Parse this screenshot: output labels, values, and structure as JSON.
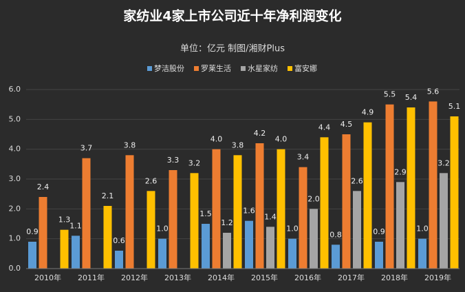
{
  "chart_data": {
    "type": "bar",
    "title": "家纺业4家上市公司近十年净利润变化",
    "subtitle": "单位：亿元 制图/湘财Plus",
    "categories": [
      "2010年",
      "2011年",
      "2012年",
      "2013年",
      "2014年",
      "2015年",
      "2016年",
      "2017年",
      "2018年",
      "2019年"
    ],
    "series": [
      {
        "name": "梦洁股份",
        "color": "#5b9bd5",
        "values": [
          0.9,
          1.1,
          0.6,
          1.0,
          1.5,
          1.6,
          1.0,
          0.8,
          0.9,
          1.0
        ],
        "value_labels": [
          "0.9",
          "1.1",
          "0.6",
          "1.0",
          "1.5",
          "1.6",
          "1.0",
          "0.8",
          "0.9",
          "1.0"
        ]
      },
      {
        "name": "罗莱生活",
        "color": "#ed7d31",
        "values": [
          2.4,
          3.7,
          3.8,
          3.3,
          4.0,
          4.2,
          3.4,
          4.5,
          5.5,
          5.6
        ],
        "value_labels": [
          "2.4",
          "3.7",
          "3.8",
          "3.3",
          "4.0",
          "4.2",
          "3.4",
          "4.5",
          "5.5",
          "5.6"
        ]
      },
      {
        "name": "水星家纺",
        "color": "#a5a5a5",
        "values": [
          null,
          null,
          null,
          null,
          1.2,
          1.4,
          2.0,
          2.6,
          2.9,
          3.2
        ],
        "value_labels": [
          null,
          null,
          null,
          null,
          "1.2",
          "1.4",
          "2.0",
          "2.6",
          "2.9",
          "3.2"
        ]
      },
      {
        "name": "富安娜",
        "color": "#ffc000",
        "values": [
          1.3,
          2.1,
          2.6,
          3.2,
          3.8,
          4.0,
          4.4,
          4.9,
          5.4,
          5.1
        ],
        "value_labels": [
          "1.3",
          "2.1",
          "2.6",
          "3.2",
          "3.8",
          "4.0",
          "4.4",
          "4.9",
          "5.4",
          "5.1"
        ]
      }
    ],
    "ylim": [
      0,
      6
    ],
    "yticks": [
      {
        "value": 0,
        "label": "0.0"
      },
      {
        "value": 1,
        "label": "1.0"
      },
      {
        "value": 2,
        "label": "2.0"
      },
      {
        "value": 3,
        "label": "3.0"
      },
      {
        "value": 4,
        "label": "4.0"
      },
      {
        "value": 5,
        "label": "5.0"
      },
      {
        "value": 6,
        "label": "6.0"
      }
    ],
    "grid": true,
    "legend": "top"
  }
}
